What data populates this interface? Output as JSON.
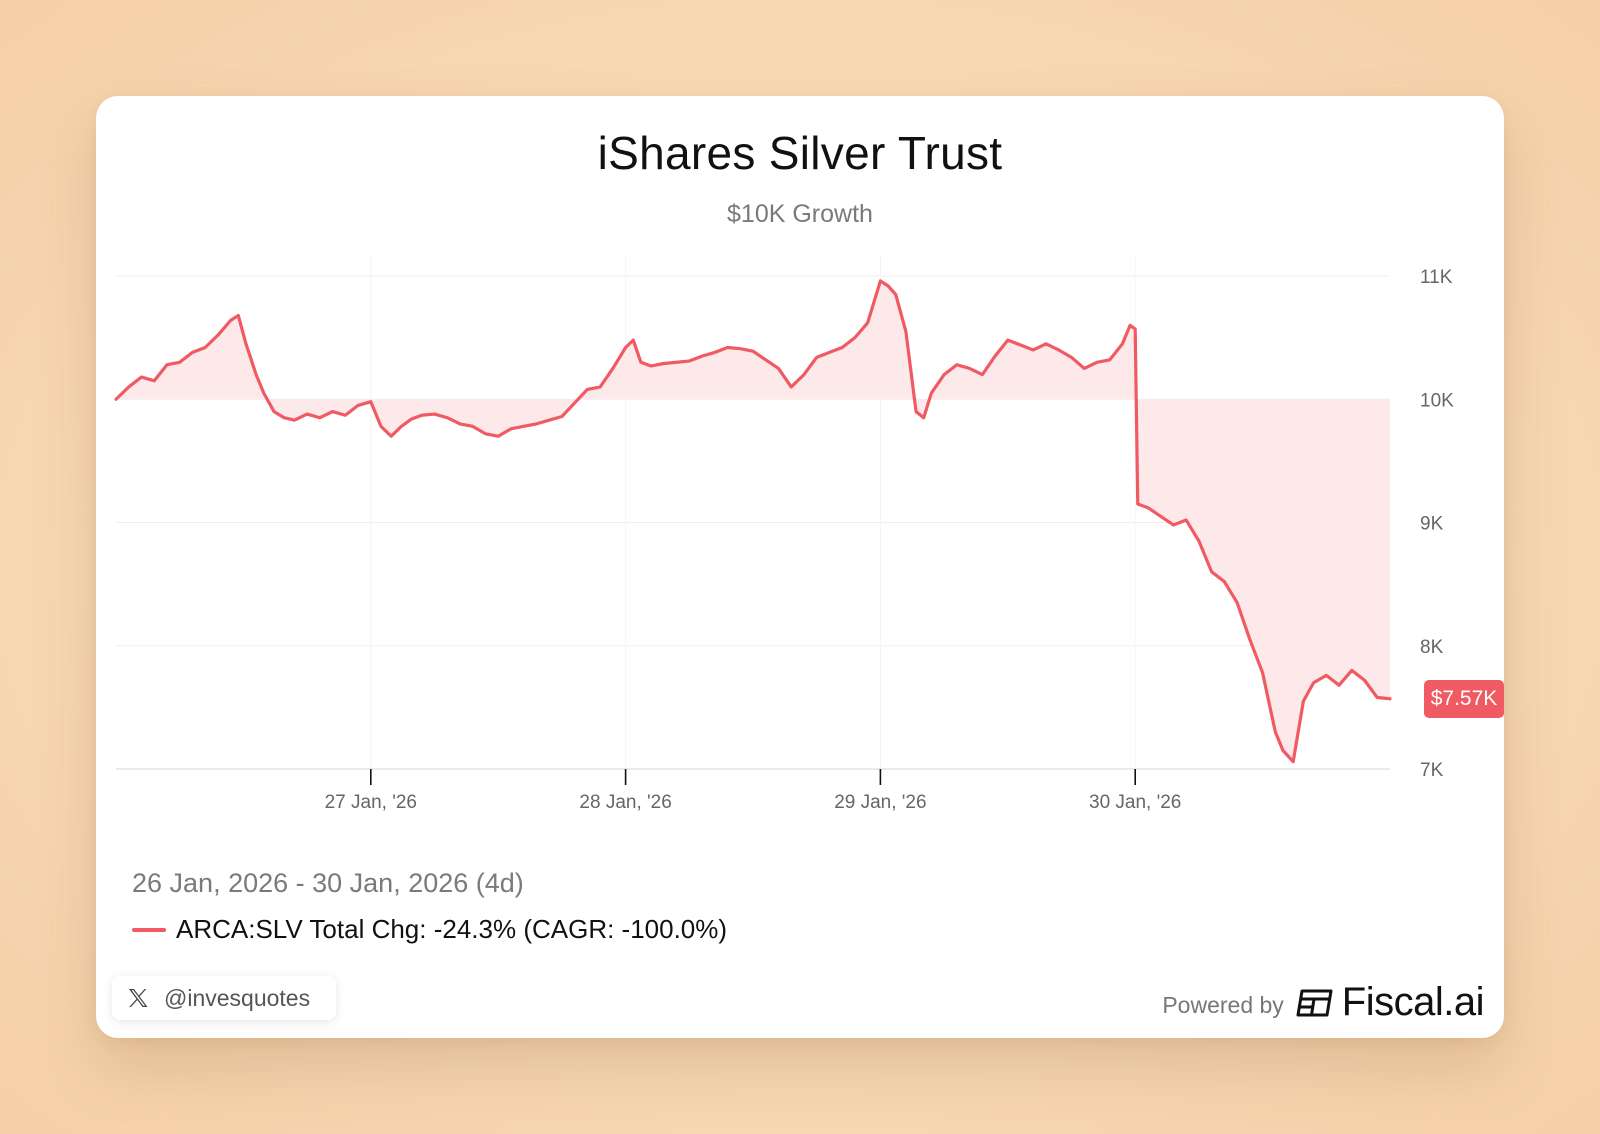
{
  "card": {
    "title": "iShares Silver Trust",
    "subtitle": "$10K Growth"
  },
  "chart_data": {
    "type": "area",
    "title": "iShares Silver Trust",
    "subtitle": "$10K Growth",
    "ylim": [
      7000,
      11000
    ],
    "baseline": 10000,
    "y_ticks": [
      {
        "value": 11000,
        "label": "11K"
      },
      {
        "value": 10000,
        "label": "10K"
      },
      {
        "value": 9000,
        "label": "9K"
      },
      {
        "value": 8000,
        "label": "8K"
      },
      {
        "value": 7000,
        "label": "7K"
      }
    ],
    "x_range": [
      0,
      5
    ],
    "x_ticks": [
      {
        "value": 1,
        "label": "27 Jan, '26"
      },
      {
        "value": 2,
        "label": "28 Jan, '26"
      },
      {
        "value": 3,
        "label": "29 Jan, '26"
      },
      {
        "value": 4,
        "label": "30 Jan, '26"
      }
    ],
    "series": [
      {
        "name": "ARCA:SLV",
        "color": "#f05a62",
        "last_value_label": "$7.57K",
        "points": [
          [
            0.0,
            10000
          ],
          [
            0.05,
            10100
          ],
          [
            0.1,
            10180
          ],
          [
            0.15,
            10150
          ],
          [
            0.2,
            10280
          ],
          [
            0.25,
            10300
          ],
          [
            0.3,
            10380
          ],
          [
            0.35,
            10420
          ],
          [
            0.4,
            10520
          ],
          [
            0.45,
            10640
          ],
          [
            0.48,
            10680
          ],
          [
            0.51,
            10450
          ],
          [
            0.55,
            10200
          ],
          [
            0.58,
            10050
          ],
          [
            0.62,
            9900
          ],
          [
            0.66,
            9850
          ],
          [
            0.7,
            9830
          ],
          [
            0.75,
            9880
          ],
          [
            0.8,
            9850
          ],
          [
            0.85,
            9900
          ],
          [
            0.9,
            9870
          ],
          [
            0.95,
            9950
          ],
          [
            1.0,
            9980
          ],
          [
            1.04,
            9780
          ],
          [
            1.08,
            9700
          ],
          [
            1.12,
            9780
          ],
          [
            1.16,
            9840
          ],
          [
            1.2,
            9870
          ],
          [
            1.25,
            9880
          ],
          [
            1.3,
            9850
          ],
          [
            1.35,
            9800
          ],
          [
            1.4,
            9780
          ],
          [
            1.45,
            9720
          ],
          [
            1.5,
            9700
          ],
          [
            1.55,
            9760
          ],
          [
            1.6,
            9780
          ],
          [
            1.65,
            9800
          ],
          [
            1.7,
            9830
          ],
          [
            1.75,
            9860
          ],
          [
            1.8,
            9970
          ],
          [
            1.85,
            10080
          ],
          [
            1.9,
            10100
          ],
          [
            1.95,
            10250
          ],
          [
            2.0,
            10420
          ],
          [
            2.03,
            10480
          ],
          [
            2.06,
            10300
          ],
          [
            2.1,
            10270
          ],
          [
            2.15,
            10290
          ],
          [
            2.2,
            10300
          ],
          [
            2.25,
            10310
          ],
          [
            2.3,
            10350
          ],
          [
            2.35,
            10380
          ],
          [
            2.4,
            10420
          ],
          [
            2.45,
            10410
          ],
          [
            2.5,
            10390
          ],
          [
            2.55,
            10320
          ],
          [
            2.6,
            10250
          ],
          [
            2.65,
            10100
          ],
          [
            2.7,
            10200
          ],
          [
            2.75,
            10340
          ],
          [
            2.8,
            10380
          ],
          [
            2.85,
            10420
          ],
          [
            2.9,
            10500
          ],
          [
            2.95,
            10620
          ],
          [
            3.0,
            10960
          ],
          [
            3.03,
            10920
          ],
          [
            3.06,
            10850
          ],
          [
            3.1,
            10550
          ],
          [
            3.14,
            9900
          ],
          [
            3.17,
            9850
          ],
          [
            3.2,
            10050
          ],
          [
            3.25,
            10200
          ],
          [
            3.3,
            10280
          ],
          [
            3.35,
            10250
          ],
          [
            3.4,
            10200
          ],
          [
            3.45,
            10350
          ],
          [
            3.5,
            10480
          ],
          [
            3.55,
            10440
          ],
          [
            3.6,
            10400
          ],
          [
            3.65,
            10450
          ],
          [
            3.7,
            10400
          ],
          [
            3.75,
            10340
          ],
          [
            3.8,
            10250
          ],
          [
            3.85,
            10300
          ],
          [
            3.9,
            10320
          ],
          [
            3.95,
            10450
          ],
          [
            3.98,
            10600
          ],
          [
            4.0,
            10570
          ],
          [
            4.01,
            9150
          ],
          [
            4.05,
            9120
          ],
          [
            4.1,
            9050
          ],
          [
            4.15,
            8980
          ],
          [
            4.2,
            9020
          ],
          [
            4.25,
            8850
          ],
          [
            4.3,
            8600
          ],
          [
            4.35,
            8520
          ],
          [
            4.4,
            8350
          ],
          [
            4.45,
            8050
          ],
          [
            4.5,
            7780
          ],
          [
            4.55,
            7300
          ],
          [
            4.58,
            7150
          ],
          [
            4.62,
            7060
          ],
          [
            4.66,
            7550
          ],
          [
            4.7,
            7700
          ],
          [
            4.75,
            7760
          ],
          [
            4.8,
            7680
          ],
          [
            4.85,
            7800
          ],
          [
            4.9,
            7720
          ],
          [
            4.95,
            7580
          ],
          [
            5.0,
            7570
          ]
        ]
      }
    ],
    "date_range": "26 Jan, 2026 - 30 Jan, 2026 (4d)",
    "legend": "ARCA:SLV Total Chg: -24.3% (CAGR: -100.0%)"
  },
  "footer": {
    "social_handle": "@invesquotes",
    "powered_by": "Powered by",
    "brand": "Fiscal.ai"
  },
  "colors": {
    "line": "#f05a62",
    "fill": "#fce4e6",
    "grid": "#efefef"
  }
}
